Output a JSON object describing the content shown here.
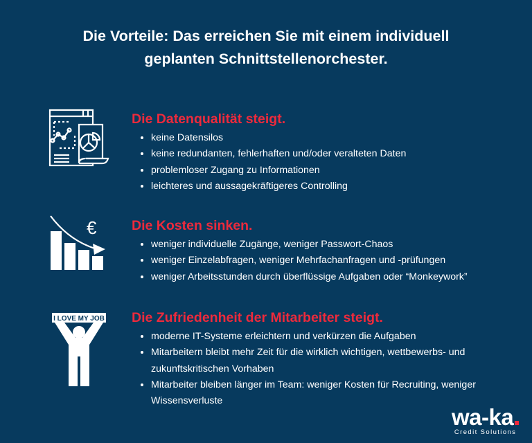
{
  "title_line1": "Die Vorteile: Das erreichen Sie mit einem individuell",
  "title_line2": "geplanten Schnittstellenorchester.",
  "colors": {
    "background": "#073a5e",
    "accent": "#ee2a3c",
    "text": "#ffffff"
  },
  "sections": [
    {
      "heading": "Die Datenqualität steigt.",
      "icon": "dashboard-report-icon",
      "items": [
        "keine Datensilos",
        "keine redundanten, fehlerhaften und/oder veralteten Daten",
        "problemloser Zugang zu Informationen",
        "leichteres und aussagekräftigeres Controlling"
      ]
    },
    {
      "heading": "Die Kosten sinken.",
      "icon": "euro-declining-chart-icon",
      "items": [
        "weniger individuelle Zugänge, weniger Passwort-Chaos",
        "weniger Einzelabfragen, weniger Mehrfachanfragen und -prüfungen",
        "weniger Arbeitsstunden durch überflüssige Aufgaben oder “Monkeywork”"
      ]
    },
    {
      "heading": "Die Zufriedenheit der Mitarbeiter steigt.",
      "icon": "person-holding-sign-icon",
      "icon_sign_text": "I LOVE MY JOB",
      "items": [
        "moderne IT-Systeme erleichtern und verkürzen die Aufgaben",
        "Mitarbeitern bleibt mehr Zeit für die wirklich wichtigen, wettbewerbs- und zukunftskritischen Vorhaben",
        "Mitarbeiter bleiben länger im Team: weniger Kosten für Recruiting, weniger Wissensverluste"
      ]
    }
  ],
  "logo": {
    "name": "wa-ka",
    "tagline": "Credit Solutions"
  }
}
